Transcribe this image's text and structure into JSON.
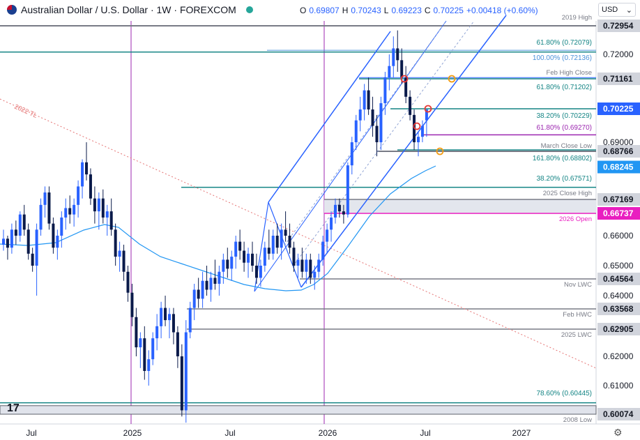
{
  "header": {
    "symbol": "Australian Dollar / U.S. Dollar · 1W · FOREXCOM",
    "open_label": "O",
    "open": "0.69807",
    "high_label": "H",
    "high": "0.70243",
    "low_label": "L",
    "low": "0.69223",
    "close_label": "C",
    "close": "0.70225",
    "change": "+0.00418 (+0.60%)",
    "currency": "USD"
  },
  "logo_text": "17",
  "chart_data": {
    "type": "candlestick",
    "price_axis": {
      "ticks": [
        "0.72000",
        "0.69000",
        "0.66000",
        "0.65000",
        "0.64000",
        "0.62000",
        "0.61000"
      ],
      "tagged": [
        {
          "value": "0.72954",
          "color": "#d1d4dc"
        },
        {
          "value": "0.71161",
          "color": "#d1d4dc"
        },
        {
          "value": "0.70225",
          "color": "#2962ff"
        },
        {
          "value": "0.68766",
          "color": "#d1d4dc"
        },
        {
          "value": "0.68245",
          "color": "#2196f3"
        },
        {
          "value": "0.67169",
          "color": "#d1d4dc"
        },
        {
          "value": "0.66737",
          "color": "#e91ec0"
        },
        {
          "value": "0.64564",
          "color": "#d1d4dc"
        },
        {
          "value": "0.63568",
          "color": "#d1d4dc"
        },
        {
          "value": "0.62905",
          "color": "#d1d4dc"
        },
        {
          "value": "0.60074",
          "color": "#d1d4dc"
        }
      ]
    },
    "time_axis": [
      "Jul",
      "2025",
      "Jul",
      "2026",
      "Jul",
      "2027"
    ],
    "annotations": [
      {
        "text": "2019 High",
        "color": "#787b86"
      },
      {
        "text": "61.80% (0.72079)",
        "color": "#138484"
      },
      {
        "text": "100.00% (0.72136)",
        "color": "#4a90d9"
      },
      {
        "text": "Feb High Close",
        "color": "#787b86"
      },
      {
        "text": "61.80% (0.71202)",
        "color": "#138484"
      },
      {
        "text": "38.20% (0.70229)",
        "color": "#138484"
      },
      {
        "text": "61.80% (0.69270)",
        "color": "#9c27b0"
      },
      {
        "text": "March Close Low",
        "color": "#787b86"
      },
      {
        "text": "161.80% (0.68802)",
        "color": "#138484"
      },
      {
        "text": "38.20% (0.67571)",
        "color": "#138484"
      },
      {
        "text": "2025 Close High",
        "color": "#787b86"
      },
      {
        "text": "2026 Open",
        "color": "#e91ec0"
      },
      {
        "text": "Nov LWC",
        "color": "#787b86"
      },
      {
        "text": "Feb HWC",
        "color": "#787b86"
      },
      {
        "text": "2025 LWC",
        "color": "#787b86"
      },
      {
        "text": "78.60% (0.60445)",
        "color": "#138484"
      },
      {
        "text": "2008 Low",
        "color": "#787b86"
      },
      {
        "text": "2022 TL",
        "color": "#e57373"
      }
    ],
    "series": [
      {
        "ohlc": [
          [
            0.657,
            0.662,
            0.655,
            0.659
          ],
          [
            0.659,
            0.66,
            0.652,
            0.656
          ],
          [
            0.656,
            0.664,
            0.654,
            0.662
          ],
          [
            0.662,
            0.665,
            0.657,
            0.66
          ],
          [
            0.66,
            0.668,
            0.658,
            0.667
          ],
          [
            0.667,
            0.67,
            0.66,
            0.662
          ],
          [
            0.662,
            0.664,
            0.652,
            0.654
          ],
          [
            0.654,
            0.656,
            0.648,
            0.65
          ],
          [
            0.65,
            0.664,
            0.64,
            0.662
          ],
          [
            0.662,
            0.672,
            0.66,
            0.67
          ],
          [
            0.67,
            0.676,
            0.666,
            0.674
          ],
          [
            0.674,
            0.676,
            0.662,
            0.664
          ],
          [
            0.664,
            0.666,
            0.654,
            0.656
          ],
          [
            0.656,
            0.662,
            0.652,
            0.66
          ],
          [
            0.66,
            0.668,
            0.656,
            0.666
          ],
          [
            0.666,
            0.672,
            0.662,
            0.669
          ],
          [
            0.669,
            0.673,
            0.664,
            0.667
          ],
          [
            0.667,
            0.672,
            0.663,
            0.67
          ],
          [
            0.67,
            0.678,
            0.666,
            0.676
          ],
          [
            0.676,
            0.685,
            0.672,
            0.684
          ],
          [
            0.684,
            0.69,
            0.678,
            0.68
          ],
          [
            0.68,
            0.682,
            0.67,
            0.672
          ],
          [
            0.672,
            0.676,
            0.664,
            0.668
          ],
          [
            0.668,
            0.674,
            0.662,
            0.672
          ],
          [
            0.672,
            0.675,
            0.664,
            0.666
          ],
          [
            0.666,
            0.67,
            0.66,
            0.668
          ],
          [
            0.668,
            0.672,
            0.66,
            0.662
          ],
          [
            0.662,
            0.664,
            0.65,
            0.653
          ],
          [
            0.653,
            0.658,
            0.648,
            0.655
          ],
          [
            0.655,
            0.657,
            0.645,
            0.648
          ],
          [
            0.648,
            0.65,
            0.638,
            0.641
          ],
          [
            0.641,
            0.644,
            0.63,
            0.633
          ],
          [
            0.633,
            0.636,
            0.62,
            0.623
          ],
          [
            0.623,
            0.628,
            0.616,
            0.626
          ],
          [
            0.626,
            0.63,
            0.612,
            0.615
          ],
          [
            0.615,
            0.622,
            0.61,
            0.619
          ],
          [
            0.619,
            0.628,
            0.617,
            0.626
          ],
          [
            0.626,
            0.634,
            0.622,
            0.63
          ],
          [
            0.63,
            0.638,
            0.626,
            0.636
          ],
          [
            0.636,
            0.64,
            0.63,
            0.632
          ],
          [
            0.632,
            0.636,
            0.626,
            0.634
          ],
          [
            0.634,
            0.636,
            0.624,
            0.628
          ],
          [
            0.628,
            0.63,
            0.616,
            0.62
          ],
          [
            0.62,
            0.624,
            0.6,
            0.602
          ],
          [
            0.602,
            0.632,
            0.598,
            0.628
          ],
          [
            0.628,
            0.638,
            0.626,
            0.636
          ],
          [
            0.636,
            0.644,
            0.632,
            0.642
          ],
          [
            0.642,
            0.646,
            0.636,
            0.639
          ],
          [
            0.639,
            0.648,
            0.636,
            0.645
          ],
          [
            0.645,
            0.65,
            0.64,
            0.642
          ],
          [
            0.642,
            0.648,
            0.638,
            0.646
          ],
          [
            0.646,
            0.652,
            0.642,
            0.644
          ],
          [
            0.644,
            0.65,
            0.64,
            0.648
          ],
          [
            0.648,
            0.654,
            0.644,
            0.652
          ],
          [
            0.652,
            0.656,
            0.646,
            0.649
          ],
          [
            0.649,
            0.655,
            0.645,
            0.653
          ],
          [
            0.653,
            0.66,
            0.649,
            0.658
          ],
          [
            0.658,
            0.662,
            0.652,
            0.655
          ],
          [
            0.655,
            0.658,
            0.648,
            0.651
          ],
          [
            0.651,
            0.656,
            0.646,
            0.654
          ],
          [
            0.654,
            0.658,
            0.648,
            0.65
          ],
          [
            0.65,
            0.654,
            0.644,
            0.646
          ],
          [
            0.646,
            0.652,
            0.643,
            0.65
          ],
          [
            0.65,
            0.658,
            0.648,
            0.656
          ],
          [
            0.656,
            0.662,
            0.652,
            0.654
          ],
          [
            0.654,
            0.662,
            0.652,
            0.66
          ],
          [
            0.66,
            0.664,
            0.654,
            0.656
          ],
          [
            0.656,
            0.664,
            0.652,
            0.662
          ],
          [
            0.662,
            0.668,
            0.658,
            0.66
          ],
          [
            0.66,
            0.664,
            0.654,
            0.656
          ],
          [
            0.656,
            0.658,
            0.648,
            0.65
          ],
          [
            0.65,
            0.654,
            0.646,
            0.652
          ],
          [
            0.652,
            0.656,
            0.646,
            0.648
          ],
          [
            0.648,
            0.654,
            0.644,
            0.652
          ],
          [
            0.652,
            0.654,
            0.644,
            0.646
          ],
          [
            0.646,
            0.65,
            0.642,
            0.648
          ],
          [
            0.648,
            0.654,
            0.646,
            0.652
          ],
          [
            0.652,
            0.66,
            0.65,
            0.658
          ],
          [
            0.658,
            0.664,
            0.654,
            0.662
          ],
          [
            0.662,
            0.668,
            0.658,
            0.666
          ],
          [
            0.666,
            0.672,
            0.664,
            0.67
          ],
          [
            0.67,
            0.672,
            0.666,
            0.668
          ],
          [
            0.668,
            0.67,
            0.664,
            0.667
          ],
          [
            0.667,
            0.684,
            0.666,
            0.683
          ],
          [
            0.683,
            0.692,
            0.68,
            0.69
          ],
          [
            0.69,
            0.7,
            0.688,
            0.698
          ],
          [
            0.698,
            0.706,
            0.694,
            0.702
          ],
          [
            0.702,
            0.71,
            0.698,
            0.708
          ],
          [
            0.708,
            0.712,
            0.7,
            0.702
          ],
          [
            0.702,
            0.706,
            0.692,
            0.696
          ],
          [
            0.696,
            0.7,
            0.686,
            0.69
          ],
          [
            0.69,
            0.706,
            0.688,
            0.704
          ],
          [
            0.704,
            0.714,
            0.7,
            0.712
          ],
          [
            0.712,
            0.72,
            0.708,
            0.716
          ],
          [
            0.716,
            0.726,
            0.712,
            0.722
          ],
          [
            0.722,
            0.728,
            0.714,
            0.718
          ],
          [
            0.718,
            0.722,
            0.71,
            0.712
          ],
          [
            0.712,
            0.716,
            0.704,
            0.706
          ],
          [
            0.706,
            0.708,
            0.698,
            0.7
          ],
          [
            0.7,
            0.702,
            0.688,
            0.69
          ],
          [
            0.69,
            0.694,
            0.686,
            0.692
          ],
          [
            0.692,
            0.698,
            0.69,
            0.696
          ],
          [
            0.698,
            0.702,
            0.692,
            0.702
          ]
        ]
      }
    ]
  }
}
